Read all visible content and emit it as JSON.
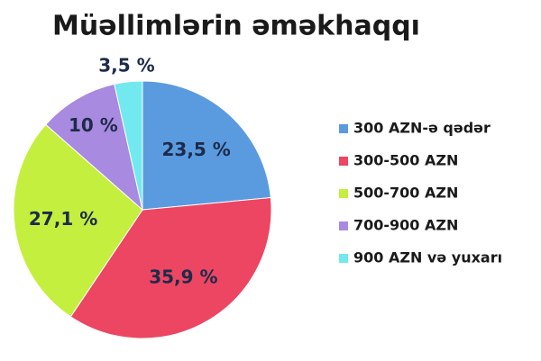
{
  "chart_data": {
    "type": "pie",
    "title": "Müəllimlərin əməkhaqqı",
    "categories": [
      "300 AZN-ə qədər",
      "300-500 AZN",
      "500-700 AZN",
      "700-900 AZN",
      "900 AZN və yuxarı"
    ],
    "values": [
      23.5,
      35.9,
      27.1,
      10,
      3.5
    ],
    "value_labels": [
      "23,5 %",
      "35,9 %",
      "27,1 %",
      "10 %",
      "3,5 %"
    ],
    "colors": [
      "#5a9be0",
      "#ec4662",
      "#c4ef3e",
      "#a88ae0",
      "#72e9ef"
    ],
    "legend": "right"
  }
}
